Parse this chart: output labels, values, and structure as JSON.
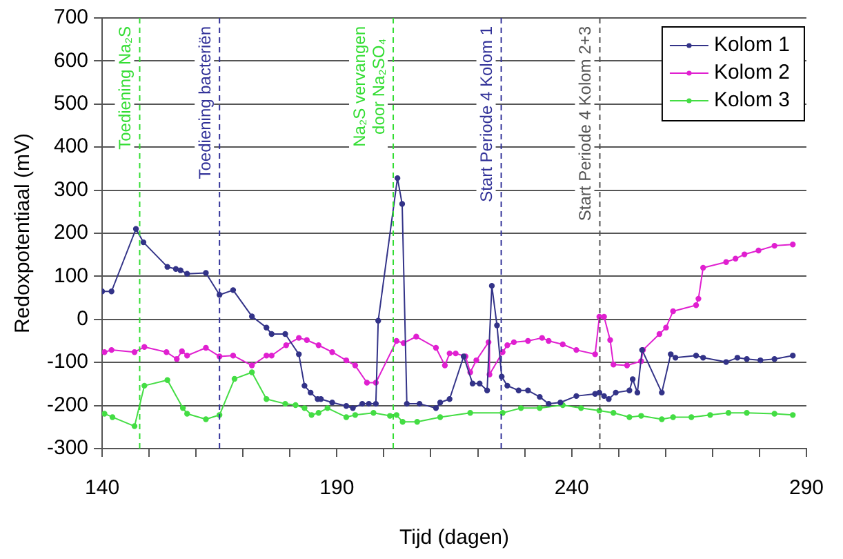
{
  "chart_data": {
    "type": "line",
    "xlabel": "Tijd (dagen)",
    "ylabel": "Redoxpotentiaal (mV)",
    "xlim": [
      140,
      290
    ],
    "xticks": [
      140,
      {
        "value": 150,
        "label": null
      },
      {
        "value": 160,
        "label": null
      },
      {
        "value": 170,
        "label": null
      },
      {
        "value": 180,
        "label": null
      },
      190,
      {
        "value": 200,
        "label": null
      },
      {
        "value": 210,
        "label": null
      },
      {
        "value": 220,
        "label": null
      },
      {
        "value": 230,
        "label": null
      },
      240,
      {
        "value": 250,
        "label": null
      },
      {
        "value": 260,
        "label": null
      },
      {
        "value": 270,
        "label": null
      },
      {
        "value": 280,
        "label": null
      },
      290
    ],
    "ylim": [
      -300,
      700
    ],
    "yticks": [
      -300,
      -200,
      -100,
      0,
      100,
      200,
      300,
      400,
      500,
      600,
      700
    ],
    "grid": "y",
    "legend": "top right",
    "marker": "circle",
    "line_style": "solid",
    "series": [
      {
        "name": "Kolom 1",
        "color": "#333388",
        "x": [
          140,
          142,
          147.2,
          148.8,
          153.9,
          155.7,
          156.7,
          158.1,
          162.1,
          165,
          167.9,
          171.9,
          175,
          176.1,
          179,
          181.9,
          183.1,
          184.4,
          185.9,
          186.6,
          189,
          192,
          193.4,
          195.4,
          196.8,
          198.3,
          198.8,
          202.9,
          203.9,
          204.9,
          207.6,
          211.1,
          212,
          214,
          217,
          218.9,
          220.4,
          222,
          223,
          224.1,
          225.1,
          226.3,
          228.7,
          230.7,
          233.2,
          235.1,
          237.6,
          241,
          245,
          245.9,
          246.9,
          247.9,
          249.4,
          252.3,
          253,
          254,
          255,
          259.2,
          261.1,
          262.1,
          266.5,
          268,
          272.9,
          275.3,
          277.3,
          280.2,
          283.2,
          287.1
        ],
        "values": [
          65,
          65,
          210,
          179,
          122,
          117,
          114,
          106,
          108,
          57,
          68,
          7,
          -19,
          -34,
          -34,
          -81,
          -154,
          -170,
          -185,
          -185,
          -193,
          -201,
          -206,
          -196,
          -196,
          -196,
          -3,
          328,
          268,
          -196,
          -196,
          -206,
          -193,
          -185,
          -86,
          -149,
          -149,
          -165,
          78,
          -14,
          -133,
          -154,
          -165,
          -165,
          -180,
          -196,
          -193,
          -178,
          -173,
          -170,
          -178,
          -185,
          -170,
          -165,
          -139,
          -170,
          -71,
          -170,
          -81,
          -89,
          -84,
          -89,
          -99,
          -89,
          -92,
          -95,
          -92,
          -84
        ]
      },
      {
        "name": "Kolom 2",
        "color": "#e020d0",
        "x": [
          140.5,
          142,
          146.9,
          149,
          153.7,
          155.9,
          157,
          158.1,
          162.1,
          165,
          167.9,
          171.9,
          175,
          176.1,
          179.2,
          181.9,
          183.6,
          186.1,
          189,
          192,
          193.9,
          196.4,
          198.3,
          202.7,
          204.2,
          206.9,
          211.1,
          213,
          214,
          215.3,
          217.4,
          218.4,
          219.7,
          222.3,
          222.5,
          225.3,
          226.3,
          227.7,
          230.7,
          233.7,
          235.1,
          238.1,
          241,
          245,
          245.9,
          246.9,
          248.2,
          248.9,
          251.8,
          254.8,
          255.2,
          258.7,
          260.1,
          261.6,
          266.5,
          267,
          268,
          272.9,
          274.9,
          276.8,
          279.8,
          283.2,
          287.1
        ],
        "values": [
          -76,
          -71,
          -76,
          -64,
          -76,
          -92,
          -74,
          -84,
          -66,
          -86,
          -84,
          -107,
          -84,
          -84,
          -60,
          -43,
          -48,
          -60,
          -76,
          -95,
          -107,
          -147,
          -147,
          -50,
          -55,
          -40,
          -66,
          -107,
          -79,
          -79,
          -86,
          -123,
          -95,
          -53,
          -128,
          -76,
          -60,
          -53,
          -50,
          -43,
          -50,
          -58,
          -71,
          -81,
          6,
          6,
          -48,
          -105,
          -107,
          -97,
          -71,
          -34,
          -19,
          19,
          33,
          48,
          120,
          133,
          141,
          151,
          160,
          171,
          174
        ]
      },
      {
        "name": "Kolom 3",
        "color": "#44dd44",
        "x": [
          140.5,
          142.2,
          146.9,
          149,
          153.9,
          157.2,
          158.1,
          162.1,
          165,
          168.2,
          171.9,
          175,
          179,
          181.2,
          183.1,
          184.6,
          186.1,
          188,
          192,
          193.9,
          197.8,
          201.3,
          202.7,
          204,
          207.1,
          212,
          218.4,
          225.3,
          229.2,
          233.2,
          238.1,
          242,
          245.9,
          248.9,
          252.3,
          254.8,
          259.2,
          261.6,
          265.5,
          269.5,
          273.4,
          277.3,
          283.2,
          287.1
        ],
        "values": [
          -219,
          -227,
          -248,
          -154,
          -141,
          -206,
          -219,
          -232,
          -222,
          -138,
          -123,
          -185,
          -196,
          -199,
          -206,
          -222,
          -217,
          -206,
          -227,
          -222,
          -217,
          -224,
          -222,
          -238,
          -238,
          -227,
          -217,
          -217,
          -206,
          -206,
          -199,
          -206,
          -212,
          -217,
          -227,
          -224,
          -232,
          -227,
          -227,
          -222,
          -217,
          -217,
          -219,
          -222
        ]
      }
    ],
    "ref_lines": [
      {
        "axis": "x",
        "value": 148,
        "label": "Toediening Na₂S",
        "color": "#33dd33",
        "line_style": "dashed"
      },
      {
        "axis": "x",
        "value": 165,
        "label": "Toediening bacteriën",
        "color": "#333399",
        "line_style": "dashed"
      },
      {
        "axis": "x",
        "value": 202,
        "label": "Na₂S vervangen door Na₂SO₄",
        "color": "#33dd33",
        "line_style": "dashed"
      },
      {
        "axis": "x",
        "value": 225,
        "label": "Start Periode 4 Kolom 1",
        "color": "#333399",
        "line_style": "dashed"
      },
      {
        "axis": "x",
        "value": 246,
        "label": "Start Periode 4 Kolom 2+3",
        "color": "#555555",
        "line_style": "dashed"
      }
    ]
  }
}
